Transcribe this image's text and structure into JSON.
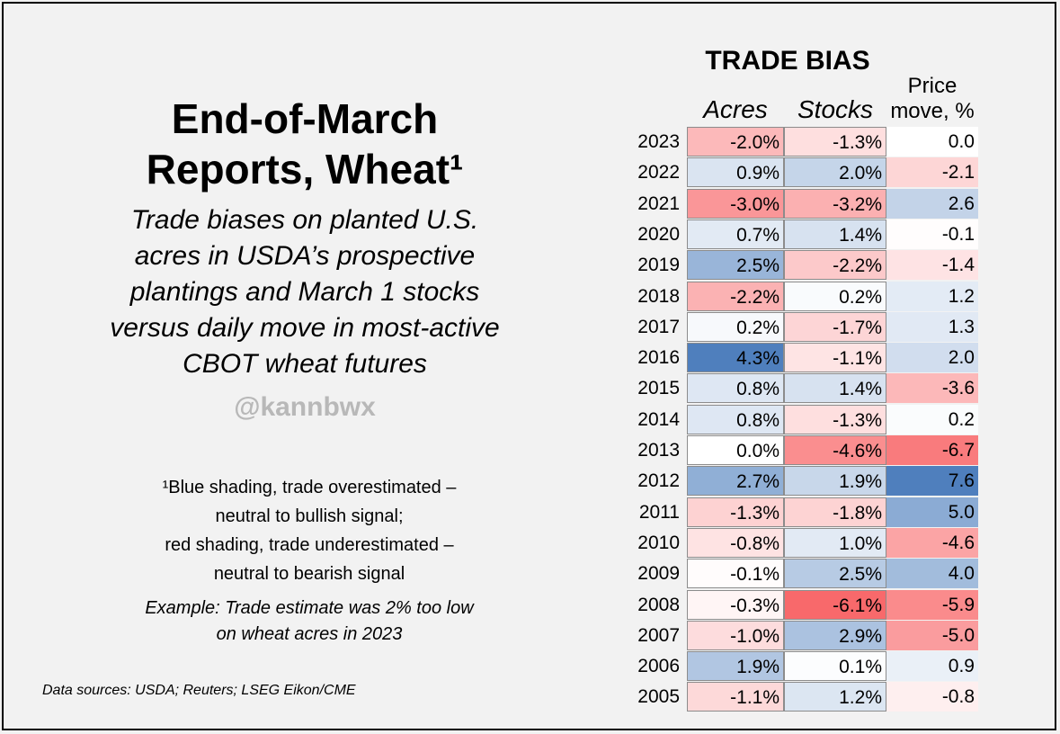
{
  "heading": {
    "title_line1": "End-of-March",
    "title_line2": "Reports, Wheat¹",
    "subtitle_lines": [
      "Trade biases on planted U.S.",
      "acres in USDA’s prospective",
      "plantings and March 1 stocks",
      "versus daily move in most-active",
      "CBOT wheat futures"
    ],
    "handle": "@kannbwx"
  },
  "footnote_lines": [
    "¹Blue shading, trade overestimated –",
    "neutral to bullish signal;",
    "red shading, trade underestimated –",
    "neutral to bearish signal"
  ],
  "example_lines": [
    "Example: Trade estimate was 2% too low",
    "on wheat acres in 2023"
  ],
  "sources": "Data sources: USDA; Reuters; LSEG Eikon/CME",
  "colors": {
    "blue_max": "#4f7fbd",
    "red_max": "#f8696b",
    "neutral": "#ffffff"
  },
  "chart_data": {
    "type": "table",
    "title": "TRADE BIAS",
    "columns": [
      "Acres",
      "Stocks",
      "Price move, %"
    ],
    "price_header_lines": [
      "Price",
      "move, %"
    ],
    "rows": [
      {
        "year": "2023",
        "acres": "-2.0%",
        "stocks": "-1.3%",
        "price": "0.0"
      },
      {
        "year": "2022",
        "acres": "0.9%",
        "stocks": "2.0%",
        "price": "-2.1"
      },
      {
        "year": "2021",
        "acres": "-3.0%",
        "stocks": "-3.2%",
        "price": "2.6"
      },
      {
        "year": "2020",
        "acres": "0.7%",
        "stocks": "1.4%",
        "price": "-0.1"
      },
      {
        "year": "2019",
        "acres": "2.5%",
        "stocks": "-2.2%",
        "price": "-1.4"
      },
      {
        "year": "2018",
        "acres": "-2.2%",
        "stocks": "0.2%",
        "price": "1.2"
      },
      {
        "year": "2017",
        "acres": "0.2%",
        "stocks": "-1.7%",
        "price": "1.3"
      },
      {
        "year": "2016",
        "acres": "4.3%",
        "stocks": "-1.1%",
        "price": "2.0"
      },
      {
        "year": "2015",
        "acres": "0.8%",
        "stocks": "1.4%",
        "price": "-3.6"
      },
      {
        "year": "2014",
        "acres": "0.8%",
        "stocks": "-1.3%",
        "price": "0.2"
      },
      {
        "year": "2013",
        "acres": "0.0%",
        "stocks": "-4.6%",
        "price": "-6.7"
      },
      {
        "year": "2012",
        "acres": "2.7%",
        "stocks": "1.9%",
        "price": "7.6"
      },
      {
        "year": "2011",
        "acres": "-1.3%",
        "stocks": "-1.8%",
        "price": "5.0"
      },
      {
        "year": "2010",
        "acres": "-0.8%",
        "stocks": "1.0%",
        "price": "-4.6"
      },
      {
        "year": "2009",
        "acres": "-0.1%",
        "stocks": "2.5%",
        "price": "4.0"
      },
      {
        "year": "2008",
        "acres": "-0.3%",
        "stocks": "-6.1%",
        "price": "-5.9"
      },
      {
        "year": "2007",
        "acres": "-1.0%",
        "stocks": "2.9%",
        "price": "-5.0"
      },
      {
        "year": "2006",
        "acres": "1.9%",
        "stocks": "0.1%",
        "price": "0.9"
      },
      {
        "year": "2005",
        "acres": "-1.1%",
        "stocks": "1.2%",
        "price": "-0.8"
      }
    ]
  }
}
